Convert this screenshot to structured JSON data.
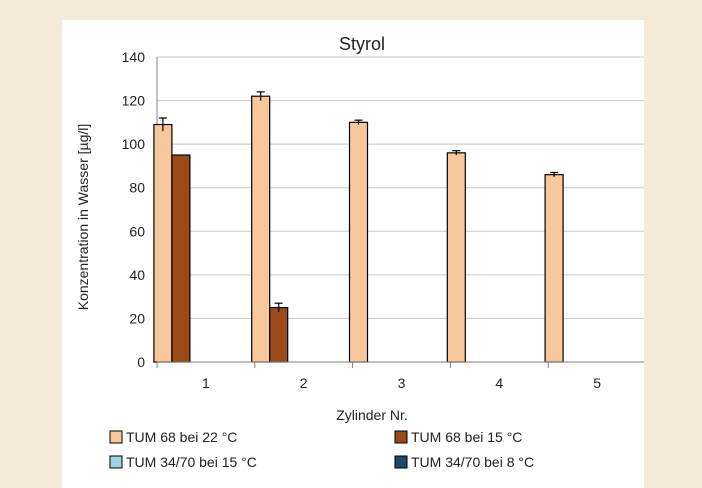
{
  "chart_data": {
    "type": "bar",
    "title": "Styrol",
    "xlabel": "Zylinder Nr.",
    "ylabel": "Konzentration in Wasser [µg/l]",
    "ylim": [
      0,
      140
    ],
    "yticks": [
      0,
      20,
      40,
      60,
      80,
      100,
      120,
      140
    ],
    "categories": [
      "1",
      "2",
      "3",
      "4",
      "5"
    ],
    "series": [
      {
        "name": "TUM 68 bei 22 °C",
        "color": "#f8c79b",
        "values": [
          109,
          122,
          110,
          96,
          86
        ],
        "errors": [
          3,
          2,
          1,
          1,
          1
        ]
      },
      {
        "name": "TUM 68 bei 15 °C",
        "color": "#9c4a18",
        "values": [
          95,
          25,
          null,
          null,
          null
        ],
        "errors": [
          0,
          2,
          0,
          0,
          0
        ]
      },
      {
        "name": "TUM 34/70 bei 15 °C",
        "color": "#9fd3dd",
        "values": [
          null,
          null,
          null,
          null,
          null
        ],
        "errors": [
          0,
          0,
          0,
          0,
          0
        ]
      },
      {
        "name": "TUM 34/70 bei 8 °C",
        "color": "#1d4a66",
        "values": [
          null,
          null,
          null,
          null,
          null
        ],
        "errors": [
          0,
          0,
          0,
          0,
          0
        ]
      }
    ],
    "grid": true,
    "legend_position": "bottom"
  }
}
